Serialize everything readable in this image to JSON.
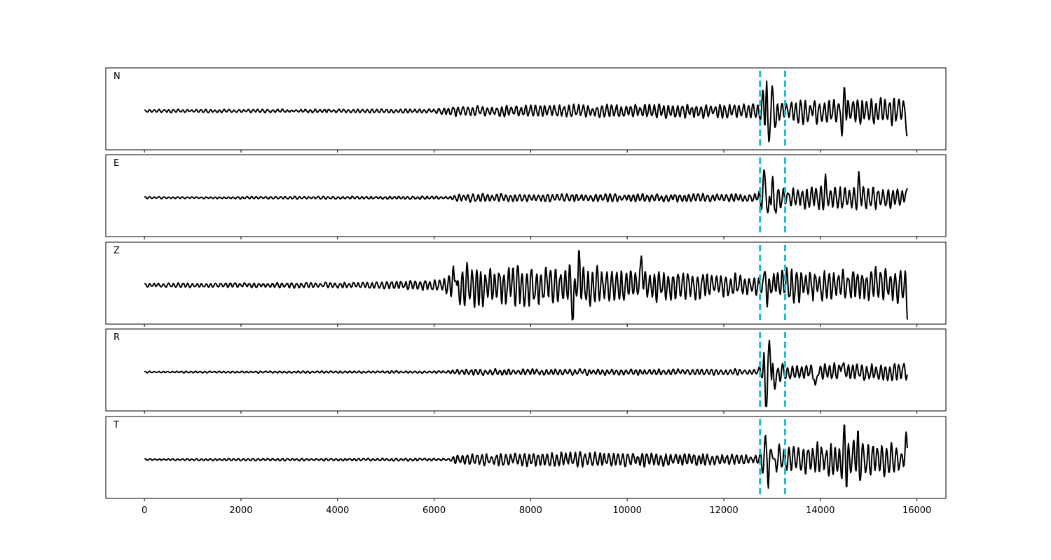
{
  "chart_data": {
    "type": "line",
    "title": "",
    "xlabel": "",
    "ylabel": "",
    "xlim": [
      -800,
      16600
    ],
    "x_ticks": [
      0,
      2000,
      4000,
      6000,
      8000,
      10000,
      12000,
      14000,
      16000
    ],
    "x_tick_labels": [
      "0",
      "2000",
      "4000",
      "6000",
      "8000",
      "10000",
      "12000",
      "14000",
      "16000"
    ],
    "x_end": 15800,
    "line_color": "#000000",
    "marker_color": "#17becf",
    "markers": [
      12750,
      13270
    ],
    "shared_x_axis": true,
    "grid": false,
    "panels": [
      {
        "label": "N",
        "envelope": [
          [
            0,
            0.06
          ],
          [
            6000,
            0.08
          ],
          [
            6300,
            0.2
          ],
          [
            12700,
            0.3
          ],
          [
            12850,
            1.0
          ],
          [
            13100,
            0.55
          ],
          [
            13300,
            0.45
          ],
          [
            14500,
            0.6
          ],
          [
            15700,
            0.5
          ],
          [
            15800,
            0.4
          ]
        ],
        "spikes": [
          [
            12880,
            0.95
          ],
          [
            12920,
            -0.95
          ],
          [
            13020,
            0.55
          ],
          [
            13080,
            -0.4
          ],
          [
            14500,
            0.8
          ],
          [
            14460,
            -0.7
          ],
          [
            15800,
            -0.65
          ]
        ]
      },
      {
        "label": "E",
        "envelope": [
          [
            0,
            0.04
          ],
          [
            6300,
            0.06
          ],
          [
            6500,
            0.15
          ],
          [
            12700,
            0.15
          ],
          [
            12850,
            1.0
          ],
          [
            13000,
            0.6
          ],
          [
            13300,
            0.35
          ],
          [
            14100,
            0.5
          ],
          [
            15800,
            0.4
          ]
        ],
        "spikes": [
          [
            12860,
            1.0
          ],
          [
            12920,
            -0.75
          ],
          [
            13000,
            0.55
          ],
          [
            13050,
            -0.45
          ],
          [
            14100,
            0.5
          ],
          [
            14800,
            0.45
          ],
          [
            15750,
            0.25
          ]
        ]
      },
      {
        "label": "Z",
        "envelope": [
          [
            0,
            0.08
          ],
          [
            4500,
            0.12
          ],
          [
            6200,
            0.25
          ],
          [
            6400,
            0.85
          ],
          [
            9000,
            0.8
          ],
          [
            11000,
            0.55
          ],
          [
            12700,
            0.45
          ],
          [
            13300,
            0.7
          ],
          [
            15800,
            0.6
          ]
        ],
        "spikes": [
          [
            6450,
            0.8
          ],
          [
            6480,
            -0.65
          ],
          [
            8870,
            -1.0
          ],
          [
            9000,
            0.7
          ],
          [
            10300,
            0.7
          ],
          [
            12870,
            0.65
          ],
          [
            12900,
            -0.8
          ],
          [
            15800,
            -0.5
          ]
        ]
      },
      {
        "label": "R",
        "envelope": [
          [
            0,
            0.03
          ],
          [
            6300,
            0.05
          ],
          [
            6500,
            0.12
          ],
          [
            12700,
            0.12
          ],
          [
            12850,
            0.9
          ],
          [
            13100,
            0.4
          ],
          [
            13300,
            0.3
          ],
          [
            15800,
            0.35
          ]
        ],
        "spikes": [
          [
            12780,
            0.15
          ],
          [
            12850,
            0.2
          ],
          [
            12880,
            -1.0
          ],
          [
            12950,
            0.85
          ],
          [
            13050,
            -0.45
          ],
          [
            14450,
            0.35
          ],
          [
            13900,
            -0.5
          ]
        ]
      },
      {
        "label": "T",
        "envelope": [
          [
            0,
            0.04
          ],
          [
            6300,
            0.06
          ],
          [
            6500,
            0.2
          ],
          [
            9000,
            0.3
          ],
          [
            12700,
            0.2
          ],
          [
            12850,
            0.8
          ],
          [
            13300,
            0.45
          ],
          [
            14500,
            0.75
          ],
          [
            15700,
            0.55
          ],
          [
            15800,
            0.5
          ]
        ],
        "spikes": [
          [
            12890,
            0.75
          ],
          [
            12920,
            -1.0
          ],
          [
            13000,
            0.55
          ],
          [
            13050,
            -0.45
          ],
          [
            14500,
            0.85
          ],
          [
            14540,
            -0.5
          ],
          [
            14780,
            0.8
          ],
          [
            14800,
            -0.65
          ],
          [
            15780,
            0.65
          ]
        ]
      }
    ]
  }
}
